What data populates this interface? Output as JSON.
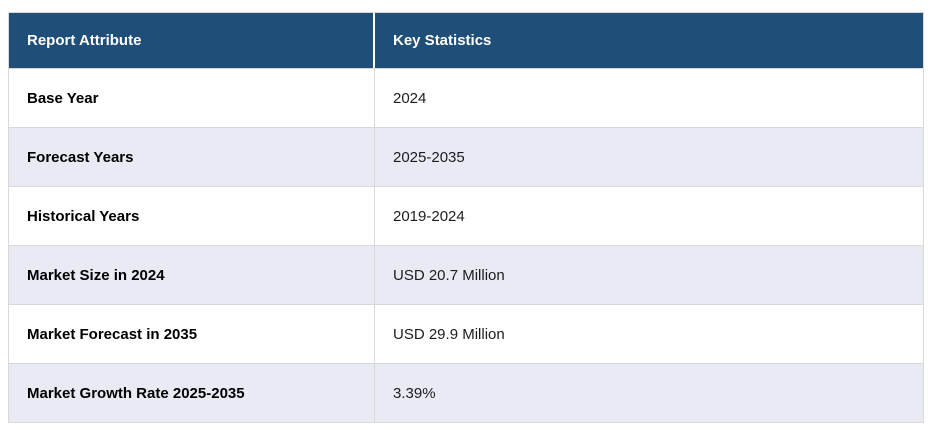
{
  "table": {
    "colors": {
      "header_bg": "#1f4e78",
      "header_text": "#ffffff",
      "row_bg": "#ffffff",
      "row_alt_bg": "#e8eaf4",
      "border": "#d9d9d9",
      "label_text": "#000000",
      "value_text": "#1d1d1d"
    },
    "headers": {
      "attribute": "Report Attribute",
      "statistics": "Key Statistics"
    },
    "rows": [
      {
        "attribute": "Base Year",
        "value": "2024"
      },
      {
        "attribute": "Forecast Years",
        "value": "2025-2035"
      },
      {
        "attribute": "Historical Years",
        "value": "2019-2024"
      },
      {
        "attribute": "Market Size in 2024",
        "value": "USD 20.7 Million"
      },
      {
        "attribute": "Market Forecast in 2035",
        "value": "USD 29.9 Million"
      },
      {
        "attribute": "Market Growth Rate 2025-2035",
        "value": "3.39%"
      }
    ]
  }
}
